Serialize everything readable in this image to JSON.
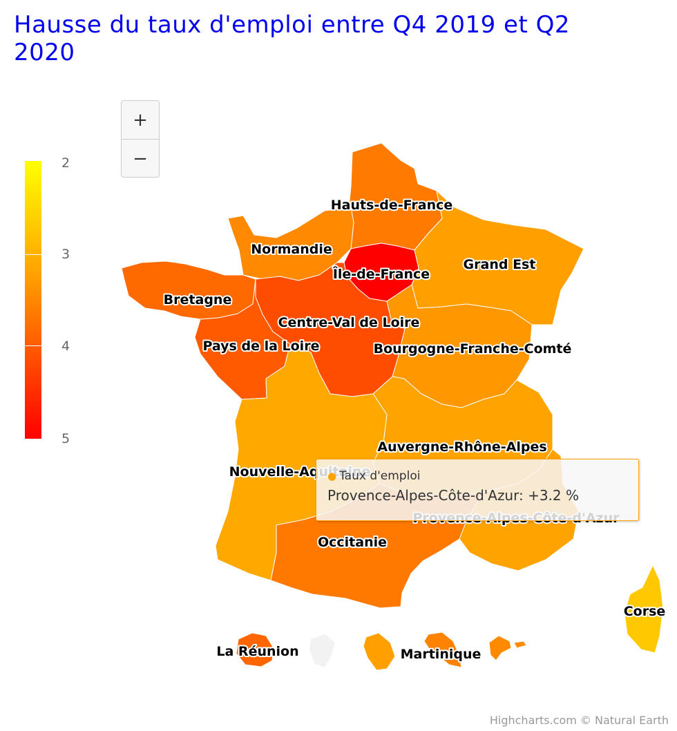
{
  "title": "Hausse du taux d'emploi entre Q4 2019 et Q2 2020",
  "zoom": {
    "in_label": "+",
    "out_label": "−"
  },
  "legend": {
    "min": 2,
    "max": 5,
    "ticks": [
      "2",
      "3",
      "4",
      "5"
    ],
    "colors": {
      "low": "#ffff00",
      "mid": "#ffa300",
      "high": "#ff0000"
    }
  },
  "regions": [
    {
      "name": "Hauts-de-France",
      "value": 3.7,
      "color": "#ff7a00"
    },
    {
      "name": "Normandie",
      "value": 3.5,
      "color": "#ff8900"
    },
    {
      "name": "Île-de-France",
      "value": 5.0,
      "color": "#ff0000"
    },
    {
      "name": "Grand Est",
      "value": 3.1,
      "color": "#ffa000"
    },
    {
      "name": "Bretagne",
      "value": 3.9,
      "color": "#ff6a00"
    },
    {
      "name": "Centre-Val de Loire",
      "value": 4.1,
      "color": "#ff4d00"
    },
    {
      "name": "Pays de la Loire",
      "value": 4.0,
      "color": "#ff5a00"
    },
    {
      "name": "Bourgogne-Franche-Comté",
      "value": 3.3,
      "color": "#ff9800"
    },
    {
      "name": "Auvergne-Rhône-Alpes",
      "value": 3.0,
      "color": "#ffa300"
    },
    {
      "name": "Nouvelle-Aquitaine",
      "value": 2.9,
      "color": "#ffa900"
    },
    {
      "name": "Provence-Alpes-Côte-d'Azur",
      "value": 3.2,
      "color": "#ffa300"
    },
    {
      "name": "Occitanie",
      "value": 3.7,
      "color": "#ff7800"
    },
    {
      "name": "Corse",
      "value": 2.5,
      "color": "#ffc800"
    },
    {
      "name": "La Réunion",
      "value": 3.9,
      "color": "#ff6500"
    },
    {
      "name": "Martinique",
      "value": 3.6,
      "color": "#ff8200"
    }
  ],
  "tooltip": {
    "series_name": "Taux d'emploi",
    "point_text": "Provence-Alpes-Côte-d'Azur: +3.2 %"
  },
  "credits": "Highcharts.com © Natural Earth"
}
